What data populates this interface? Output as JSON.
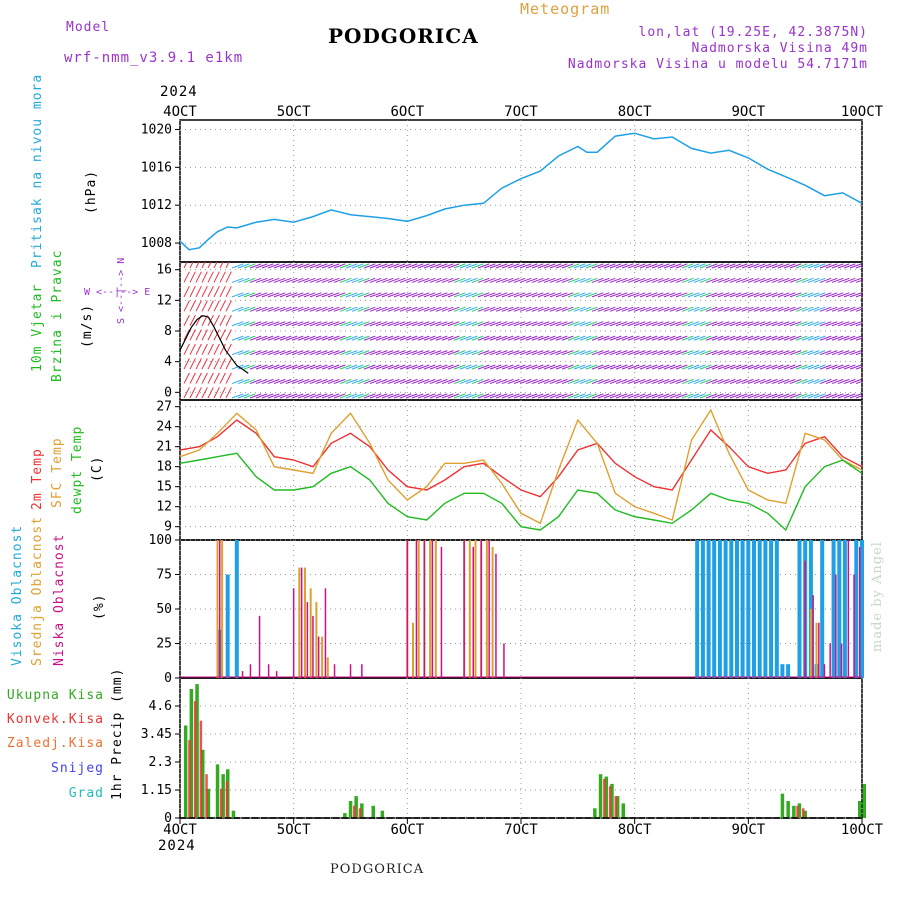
{
  "header": {
    "model_label": "Model",
    "model_name": "wrf-nmm_v3.9.1 e1km",
    "title": "PODGORICA",
    "meteogram_label": "Meteogram",
    "coords": "lon,lat (19.25E, 42.3875N)",
    "altitude": "Nadmorska Visina 49m",
    "model_altitude": "Nadmorska Visina u modelu 54.7171m",
    "year": "2024",
    "footer": "PODGORICA",
    "credit": "made by Angel"
  },
  "colors": {
    "pressure": "#1ea0e6",
    "temp2m": "#ee3333",
    "sfc": "#e0a030",
    "dewpt": "#22bb22",
    "high_cloud": "#1ea0e6",
    "mid_cloud": "#e0a030",
    "low_cloud": "#cc1188",
    "total_precip": "#33aa22",
    "convective": "#ee3333",
    "grid_scale": "#f07030",
    "snow": "#4444ee",
    "graupel": "#22bbbb",
    "wind_purple": "#9922cc",
    "wind_light": "#33aaee"
  },
  "x_axis": {
    "ticks": [
      {
        "day": 4,
        "label": "4OCT"
      },
      {
        "day": 5,
        "label": "5OCT"
      },
      {
        "day": 6,
        "label": "6OCT"
      },
      {
        "day": 7,
        "label": "7OCT"
      },
      {
        "day": 8,
        "label": "8OCT"
      },
      {
        "day": 9,
        "label": "9OCT"
      },
      {
        "day": 10,
        "label": "10OCT"
      }
    ],
    "range_days": [
      4,
      10
    ]
  },
  "panel_labels": {
    "pressure": {
      "name": "Pritisak na nivou mora",
      "unit": "(hPa)"
    },
    "wind": {
      "name1": "10m Vjetar",
      "name2": "Brzina i Pravac",
      "unit": "(m/s)",
      "compass": "W <--|--> E",
      "compass_s": "S <--|--> N"
    },
    "temp": {
      "l1": "2m Temp",
      "l2": "SFC Temp",
      "l3": "dewpt Temp",
      "unit": "(C)"
    },
    "cloud": {
      "l1": "Visoka Oblacnost",
      "l2": "Srednja Oblacnost",
      "l3": "Niska Oblacnost",
      "unit": "(%)"
    },
    "precip": {
      "unit": "1hr Precip (mm)"
    }
  },
  "precip_legend": [
    "Ukupna Kisa",
    "Konvek.Kisa",
    "Zaledj.Kisa",
    "Snijeg",
    "Grad"
  ],
  "chart_data": [
    {
      "type": "line",
      "panel": "pressure",
      "ylim": [
        1006,
        1021
      ],
      "yticks": [
        1008,
        1012,
        1016,
        1020
      ],
      "x": [
        4.0,
        4.08,
        4.17,
        4.25,
        4.33,
        4.42,
        4.5,
        4.67,
        4.83,
        5.0,
        5.17,
        5.33,
        5.5,
        5.67,
        5.83,
        6.0,
        6.17,
        6.33,
        6.5,
        6.67,
        6.83,
        7.0,
        7.17,
        7.33,
        7.5,
        7.58,
        7.67,
        7.83,
        8.0,
        8.17,
        8.33,
        8.5,
        8.67,
        8.83,
        9.0,
        9.17,
        9.33,
        9.5,
        9.67,
        9.83,
        10.0
      ],
      "series": [
        {
          "values": [
            1008.2,
            1007.3,
            1007.5,
            1008.4,
            1009.2,
            1009.7,
            1009.6,
            1010.2,
            1010.5,
            1010.2,
            1010.8,
            1011.5,
            1011.0,
            1010.8,
            1010.6,
            1010.3,
            1010.9,
            1011.6,
            1012.0,
            1012.2,
            1013.8,
            1014.8,
            1015.6,
            1017.2,
            1018.2,
            1017.6,
            1017.6,
            1019.3,
            1019.6,
            1019.0,
            1019.2,
            1018.0,
            1017.5,
            1017.8,
            1017.0,
            1015.8,
            1015.0,
            1014.1,
            1013.0,
            1013.3,
            1012.2
          ]
        }
      ]
    },
    {
      "type": "line",
      "panel": "wind",
      "ylim": [
        -1,
        17
      ],
      "yticks": [
        0,
        4,
        8,
        12,
        16
      ],
      "x": [
        4.0,
        4.05,
        4.1,
        4.15,
        4.2,
        4.25,
        4.3,
        4.35,
        4.4,
        4.45,
        4.5,
        4.55,
        4.6
      ],
      "series": [
        {
          "values": [
            5.5,
            7.0,
            8.5,
            9.5,
            10.0,
            9.8,
            8.5,
            7.0,
            5.5,
            4.5,
            3.5,
            3.0,
            2.5
          ]
        }
      ]
    },
    {
      "type": "line",
      "panel": "temp",
      "ylim": [
        7,
        28
      ],
      "yticks": [
        9,
        12,
        15,
        18,
        21,
        24,
        27
      ],
      "x": [
        4.0,
        4.17,
        4.33,
        4.5,
        4.67,
        4.83,
        5.0,
        5.17,
        5.33,
        5.5,
        5.67,
        5.83,
        6.0,
        6.17,
        6.33,
        6.5,
        6.67,
        6.83,
        7.0,
        7.17,
        7.33,
        7.5,
        7.67,
        7.83,
        8.0,
        8.17,
        8.33,
        8.5,
        8.67,
        8.83,
        9.0,
        9.17,
        9.33,
        9.5,
        9.67,
        9.83,
        10.0
      ],
      "series": [
        {
          "values": [
            20.5,
            21.0,
            22.5,
            25.0,
            23.0,
            19.5,
            19.0,
            18.0,
            21.5,
            23.0,
            21.0,
            17.5,
            15.0,
            14.5,
            16.0,
            18.0,
            18.5,
            16.5,
            14.5,
            13.5,
            16.5,
            20.5,
            21.5,
            18.5,
            16.5,
            15.0,
            14.5,
            19.0,
            23.5,
            21.0,
            18.0,
            17.0,
            17.5,
            21.5,
            22.5,
            19.5,
            18.0
          ]
        },
        {
          "values": [
            19.5,
            20.5,
            23.0,
            26.0,
            23.5,
            18.0,
            17.5,
            17.0,
            23.0,
            26.0,
            21.5,
            16.0,
            13.0,
            15.0,
            18.5,
            18.5,
            19.0,
            15.5,
            11.0,
            9.5,
            17.5,
            25.0,
            21.5,
            14.0,
            12.0,
            11.0,
            10.0,
            22.0,
            26.5,
            20.0,
            14.5,
            13.0,
            12.5,
            23.0,
            22.0,
            19.0,
            17.5
          ]
        },
        {
          "values": [
            18.5,
            19.0,
            19.5,
            20.0,
            16.5,
            14.5,
            14.5,
            15.0,
            17.0,
            18.0,
            16.0,
            12.5,
            10.5,
            10.0,
            12.5,
            14.0,
            14.0,
            12.5,
            9.0,
            8.5,
            10.5,
            14.5,
            14.0,
            11.5,
            10.5,
            10.0,
            9.5,
            11.5,
            14.0,
            13.0,
            12.5,
            11.0,
            8.5,
            15.0,
            18.0,
            19.0,
            17.0
          ]
        }
      ]
    },
    {
      "type": "bar",
      "panel": "cloud",
      "ylim": [
        0,
        100
      ],
      "yticks": [
        0,
        25,
        50,
        75,
        100
      ],
      "series": [
        {
          "values_x": [
            4.35,
            4.42,
            4.5,
            8.55,
            8.6,
            8.65,
            8.7,
            8.75,
            8.8,
            8.85,
            8.9,
            8.95,
            9.0,
            9.05,
            9.1,
            9.15,
            9.2,
            9.25,
            9.3,
            9.35,
            9.45,
            9.5,
            9.55,
            9.6,
            9.65,
            9.75,
            9.8,
            9.85,
            9.95,
            10.0
          ],
          "values": [
            35,
            75,
            100,
            100,
            100,
            100,
            100,
            100,
            100,
            100,
            100,
            100,
            100,
            100,
            100,
            100,
            100,
            100,
            10,
            10,
            100,
            100,
            100,
            10,
            100,
            100,
            100,
            100,
            100,
            100
          ]
        },
        {
          "values_x": [
            4.33,
            4.37,
            5.05,
            5.1,
            5.15,
            5.2,
            5.25,
            5.3,
            6.0,
            6.05,
            6.1,
            6.15,
            6.2,
            6.25,
            6.5,
            6.55,
            6.6,
            6.65,
            6.7,
            6.75,
            9.55,
            9.6
          ],
          "values": [
            100,
            100,
            80,
            80,
            65,
            55,
            30,
            15,
            100,
            40,
            100,
            100,
            100,
            100,
            100,
            100,
            100,
            100,
            100,
            95,
            50,
            40
          ]
        },
        {
          "values_x": [
            4.35,
            4.55,
            4.62,
            4.7,
            4.78,
            4.85,
            5.0,
            5.07,
            5.12,
            5.17,
            5.22,
            5.28,
            5.36,
            5.5,
            5.6,
            6.0,
            6.08,
            6.15,
            6.22,
            6.3,
            6.5,
            6.58,
            6.65,
            6.72,
            6.78,
            6.85,
            9.5,
            9.57,
            9.62,
            9.67,
            9.72,
            9.77,
            9.82,
            9.88,
            9.93,
            9.98
          ],
          "values": [
            100,
            5,
            10,
            45,
            10,
            5,
            65,
            80,
            55,
            45,
            30,
            65,
            10,
            10,
            10,
            100,
            100,
            100,
            100,
            95,
            100,
            95,
            100,
            100,
            90,
            25,
            85,
            60,
            40,
            10,
            25,
            75,
            25,
            100,
            75,
            95
          ]
        }
      ]
    },
    {
      "type": "bar",
      "panel": "precip",
      "ylim": [
        0,
        5.75
      ],
      "yticks": [
        0,
        1.15,
        2.3,
        3.45,
        4.6
      ],
      "series": [
        {
          "name": "Ukupna Kisa",
          "values_x": [
            4.05,
            4.1,
            4.15,
            4.2,
            4.25,
            4.33,
            4.38,
            4.42,
            4.47,
            4.52,
            4.57,
            5.45,
            5.5,
            5.55,
            5.6,
            5.65,
            5.7,
            5.78,
            5.83,
            7.65,
            7.7,
            7.75,
            7.8,
            7.85,
            7.9,
            7.95,
            9.3,
            9.35,
            9.4,
            9.45,
            9.5,
            9.55,
            9.98,
            10.02
          ],
          "values": [
            3.8,
            5.3,
            5.5,
            2.8,
            1.2,
            2.2,
            1.8,
            2.0,
            0.3,
            0.0,
            0.0,
            0.2,
            0.7,
            0.9,
            0.6,
            0.0,
            0.5,
            0.3,
            0.0,
            0.4,
            1.8,
            1.7,
            1.4,
            0.9,
            0.6,
            0.0,
            1.0,
            0.7,
            0.5,
            0.6,
            0.3,
            0.0,
            0.7,
            1.4
          ]
        },
        {
          "name": "Konvek.Kisa",
          "values_x": [
            4.07,
            4.12,
            4.17,
            4.22,
            4.35,
            4.4,
            5.52,
            5.57,
            7.72,
            7.77,
            7.82,
            9.42,
            9.47
          ],
          "values": [
            3.2,
            4.8,
            4.0,
            1.8,
            1.2,
            1.5,
            0.5,
            0.4,
            1.6,
            1.3,
            0.9,
            0.5,
            0.4
          ]
        }
      ]
    }
  ]
}
